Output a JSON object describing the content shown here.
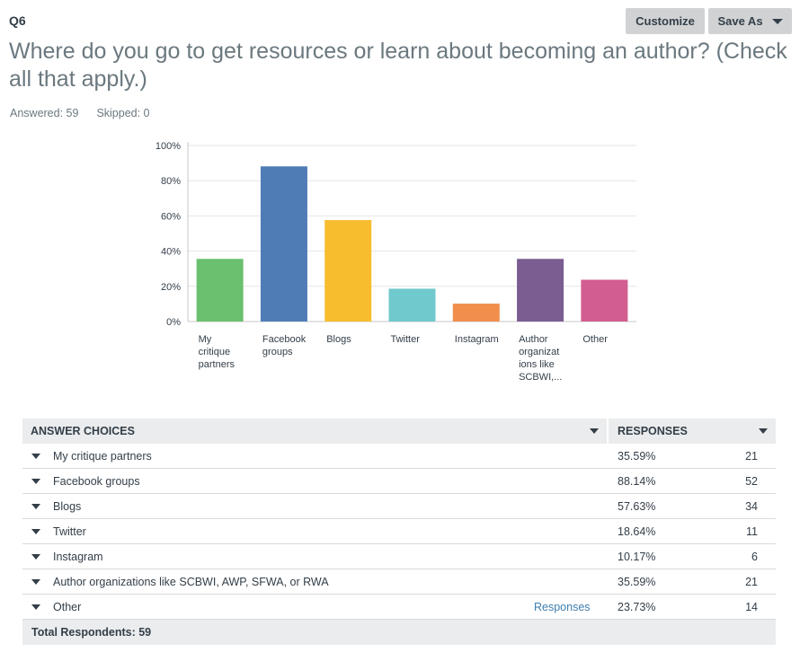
{
  "question": {
    "number": "Q6",
    "title": "Where do you go to get resources or learn about becoming an author? (Check all that apply.)",
    "answered": "Answered: 59",
    "skipped": "Skipped: 0"
  },
  "toolbar": {
    "customize_label": "Customize",
    "save_as_label": "Save As"
  },
  "chart_data": {
    "type": "bar",
    "categories": [
      [
        "My",
        "critique",
        "partners"
      ],
      [
        "Facebook",
        "groups"
      ],
      [
        "Blogs"
      ],
      [
        "Twitter"
      ],
      [
        "Instagram"
      ],
      [
        "Author",
        "organizat",
        "ions like",
        "SCBWI,..."
      ],
      [
        "Other"
      ]
    ],
    "values": [
      35.59,
      88.14,
      57.63,
      18.64,
      10.17,
      35.59,
      23.73
    ],
    "colors": [
      "#6bc06f",
      "#507cb6",
      "#f7bd2f",
      "#70c9cd",
      "#f18e4c",
      "#7b5d92",
      "#d25d90"
    ],
    "yticks": [
      "0%",
      "20%",
      "40%",
      "60%",
      "80%",
      "100%"
    ],
    "ylim": [
      0,
      100
    ],
    "grid": true
  },
  "table": {
    "headers": {
      "choices": "ANSWER CHOICES",
      "responses": "RESPONSES"
    },
    "rows": [
      {
        "label": "My critique partners",
        "pct": "35.59%",
        "count": "21"
      },
      {
        "label": "Facebook groups",
        "pct": "88.14%",
        "count": "52"
      },
      {
        "label": "Blogs",
        "pct": "57.63%",
        "count": "34"
      },
      {
        "label": "Twitter",
        "pct": "18.64%",
        "count": "11"
      },
      {
        "label": "Instagram",
        "pct": "10.17%",
        "count": "6"
      },
      {
        "label": "Author organizations like SCBWI, AWP, SFWA, or RWA",
        "pct": "35.59%",
        "count": "21"
      },
      {
        "label": "Other",
        "pct": "23.73%",
        "count": "14",
        "link": "Responses"
      }
    ],
    "total": "Total Respondents: 59"
  }
}
